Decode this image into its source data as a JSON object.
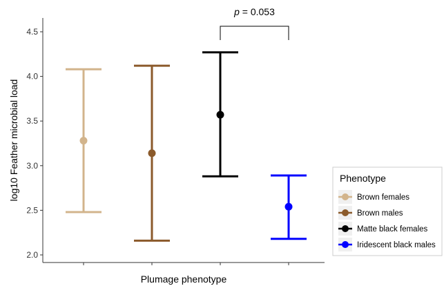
{
  "chart_data": {
    "type": "errorbar",
    "title": "",
    "xlabel": "Plumage phenotype",
    "ylabel": "log10 Feather microbial load",
    "ylim": [
      1.95,
      4.6
    ],
    "yticks": [
      "2.0",
      "2.5",
      "3.0",
      "3.5",
      "4.0",
      "4.5"
    ],
    "grid": false,
    "legend": {
      "title": "Phenotype",
      "placement": "right",
      "entries": [
        "Brown females",
        "Brown males",
        "Matte black females",
        "Iridescent black males"
      ]
    },
    "series": [
      {
        "name": "Brown females",
        "mean": 3.28,
        "lower": 2.48,
        "upper": 4.08,
        "color": "#d2b48c"
      },
      {
        "name": "Brown males",
        "mean": 3.14,
        "lower": 2.16,
        "upper": 4.12,
        "color": "#8b5a2b"
      },
      {
        "name": "Matte black females",
        "mean": 3.57,
        "lower": 2.88,
        "upper": 4.27,
        "color": "#000000"
      },
      {
        "name": "Iridescent black males",
        "mean": 2.54,
        "lower": 2.18,
        "upper": 2.89,
        "color": "#0000ff"
      }
    ],
    "annotation": {
      "prefix": "p",
      "suffix": " = 0.053",
      "between": [
        2,
        3
      ]
    }
  }
}
